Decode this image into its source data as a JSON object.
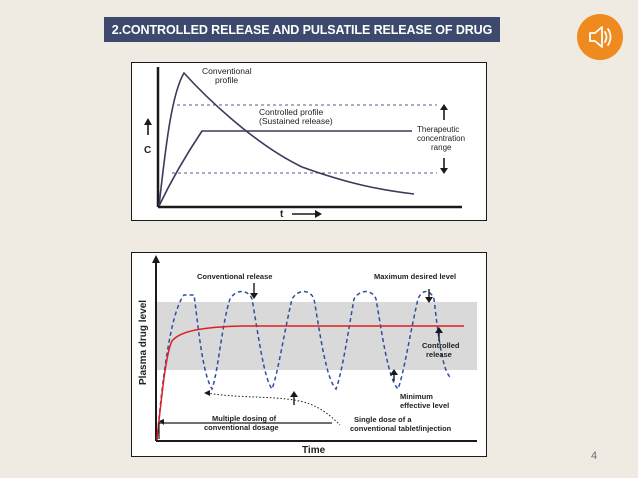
{
  "slide": {
    "title": "2.CONTROLLED RELEASE AND PULSATILE RELEASE OF DRUG",
    "page_number": "4"
  },
  "icons": {
    "audio": "speaker-icon"
  },
  "colors": {
    "title_bg": "#3d4a6d",
    "audio_button": "#ef8a1e",
    "controlled_curve": "#e02020",
    "conventional_curve": "#2e4fa0",
    "therapeutic_band": "#d9d9d9"
  },
  "figure1": {
    "y_axis_label": "C",
    "x_axis_label": "t",
    "conventional_label_1": "Conventional",
    "conventional_label_2": "profile",
    "controlled_label_1": "Controlled profile",
    "controlled_label_2": "(Sustained release)",
    "therapeutic_label_1": "Therapeutic",
    "therapeutic_label_2": "concentration",
    "therapeutic_label_3": "range"
  },
  "figure2": {
    "y_axis_label": "Plasma drug level",
    "x_axis_label": "Time",
    "conventional_release": "Conventional release",
    "max_desired": "Maximum desired level",
    "controlled_release_1": "Controlled",
    "controlled_release_2": "release",
    "minimum_effective_1": "Minimum",
    "minimum_effective_2": "effective level",
    "multiple_dosing_1": "Multiple dosing of",
    "multiple_dosing_2": "conventional dosage",
    "single_dose_1": "Single dose of a",
    "single_dose_2": "conventional tablet/injection"
  }
}
